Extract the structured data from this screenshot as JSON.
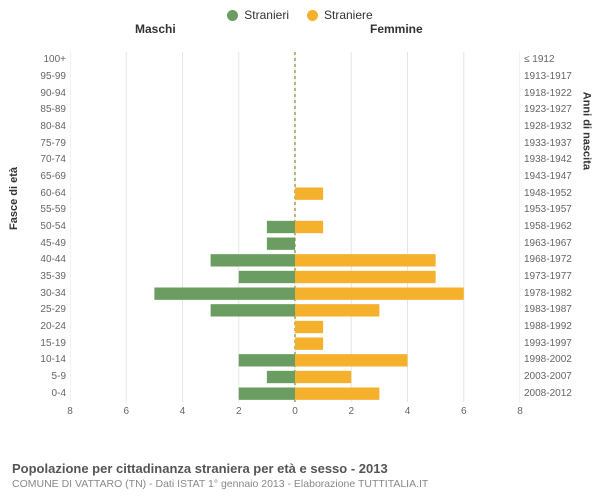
{
  "legend": {
    "male": {
      "label": "Stranieri",
      "color": "#6b9c62"
    },
    "female": {
      "label": "Straniere",
      "color": "#f5b02c"
    }
  },
  "column_headers": {
    "left": "Maschi",
    "right": "Femmine"
  },
  "axis_titles": {
    "left": "Fasce di età",
    "right": "Anni di nascita"
  },
  "chart": {
    "type": "population-pyramid",
    "xmax": 8,
    "xtick_step": 2,
    "background_color": "#ffffff",
    "grid_color": "#e5e5e5",
    "zero_line_color": "#8a8a2a",
    "bar_fill_left": "#6b9c62",
    "bar_fill_right": "#f5b02c",
    "bar_height_ratio": 0.74,
    "rows": [
      {
        "age": "100+",
        "birth": "≤ 1912",
        "m": 0,
        "f": 0
      },
      {
        "age": "95-99",
        "birth": "1913-1917",
        "m": 0,
        "f": 0
      },
      {
        "age": "90-94",
        "birth": "1918-1922",
        "m": 0,
        "f": 0
      },
      {
        "age": "85-89",
        "birth": "1923-1927",
        "m": 0,
        "f": 0
      },
      {
        "age": "80-84",
        "birth": "1928-1932",
        "m": 0,
        "f": 0
      },
      {
        "age": "75-79",
        "birth": "1933-1937",
        "m": 0,
        "f": 0
      },
      {
        "age": "70-74",
        "birth": "1938-1942",
        "m": 0,
        "f": 0
      },
      {
        "age": "65-69",
        "birth": "1943-1947",
        "m": 0,
        "f": 0
      },
      {
        "age": "60-64",
        "birth": "1948-1952",
        "m": 0,
        "f": 1
      },
      {
        "age": "55-59",
        "birth": "1953-1957",
        "m": 0,
        "f": 0
      },
      {
        "age": "50-54",
        "birth": "1958-1962",
        "m": 1,
        "f": 1
      },
      {
        "age": "45-49",
        "birth": "1963-1967",
        "m": 1,
        "f": 0
      },
      {
        "age": "40-44",
        "birth": "1968-1972",
        "m": 3,
        "f": 5
      },
      {
        "age": "35-39",
        "birth": "1973-1977",
        "m": 2,
        "f": 5
      },
      {
        "age": "30-34",
        "birth": "1978-1982",
        "m": 5,
        "f": 6
      },
      {
        "age": "25-29",
        "birth": "1983-1987",
        "m": 3,
        "f": 3
      },
      {
        "age": "20-24",
        "birth": "1988-1992",
        "m": 0,
        "f": 1
      },
      {
        "age": "15-19",
        "birth": "1993-1997",
        "m": 0,
        "f": 1
      },
      {
        "age": "10-14",
        "birth": "1998-2002",
        "m": 2,
        "f": 4
      },
      {
        "age": "5-9",
        "birth": "2003-2007",
        "m": 1,
        "f": 2
      },
      {
        "age": "0-4",
        "birth": "2008-2012",
        "m": 2,
        "f": 3
      }
    ]
  },
  "footer": {
    "title": "Popolazione per cittadinanza straniera per età e sesso - 2013",
    "sub": "COMUNE DI VATTARO (TN) - Dati ISTAT 1° gennaio 2013 - Elaborazione TUTTITALIA.IT"
  }
}
